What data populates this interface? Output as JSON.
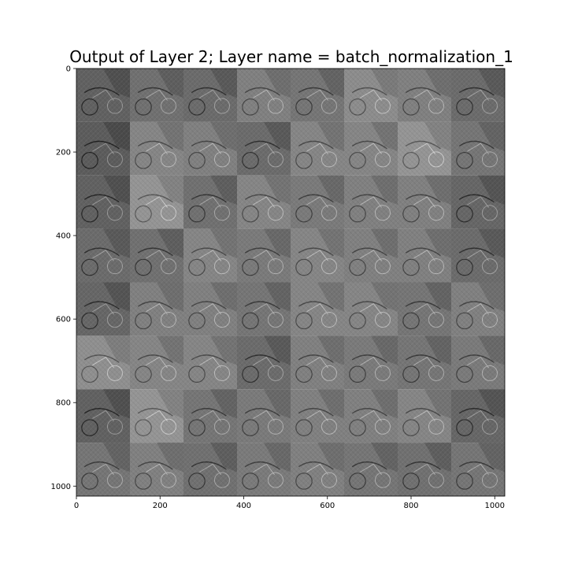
{
  "chart_data": {
    "type": "heatmap",
    "title": "Output of Layer 2; Layer name = batch_normalization_1",
    "xlabel": "",
    "ylabel": "",
    "xlim": [
      0,
      1024
    ],
    "ylim": [
      1024,
      0
    ],
    "grid": false,
    "grid_rows": 8,
    "grid_cols": 8,
    "tile_size": 128,
    "x_ticks": [
      {
        "value": 0,
        "label": "0"
      },
      {
        "value": 200,
        "label": "200"
      },
      {
        "value": 400,
        "label": "400"
      },
      {
        "value": 600,
        "label": "600"
      },
      {
        "value": 800,
        "label": "800"
      },
      {
        "value": 1000,
        "label": "1000"
      }
    ],
    "y_ticks": [
      {
        "value": 0,
        "label": "0"
      },
      {
        "value": 200,
        "label": "200"
      },
      {
        "value": 400,
        "label": "400"
      },
      {
        "value": 600,
        "label": "600"
      },
      {
        "value": 800,
        "label": "800"
      },
      {
        "value": 1000,
        "label": "1000"
      }
    ],
    "tile_gray": [
      [
        0.38,
        0.44,
        0.42,
        0.5,
        0.46,
        0.55,
        0.5,
        0.42
      ],
      [
        0.36,
        0.52,
        0.5,
        0.42,
        0.52,
        0.52,
        0.58,
        0.46
      ],
      [
        0.38,
        0.58,
        0.44,
        0.52,
        0.48,
        0.5,
        0.5,
        0.4
      ],
      [
        0.42,
        0.44,
        0.52,
        0.48,
        0.52,
        0.5,
        0.5,
        0.42
      ],
      [
        0.4,
        0.5,
        0.5,
        0.46,
        0.52,
        0.52,
        0.46,
        0.5
      ],
      [
        0.56,
        0.52,
        0.52,
        0.42,
        0.5,
        0.48,
        0.46,
        0.48
      ],
      [
        0.38,
        0.58,
        0.46,
        0.48,
        0.5,
        0.5,
        0.52,
        0.4
      ],
      [
        0.46,
        0.5,
        0.44,
        0.48,
        0.5,
        0.46,
        0.44,
        0.46
      ]
    ]
  }
}
